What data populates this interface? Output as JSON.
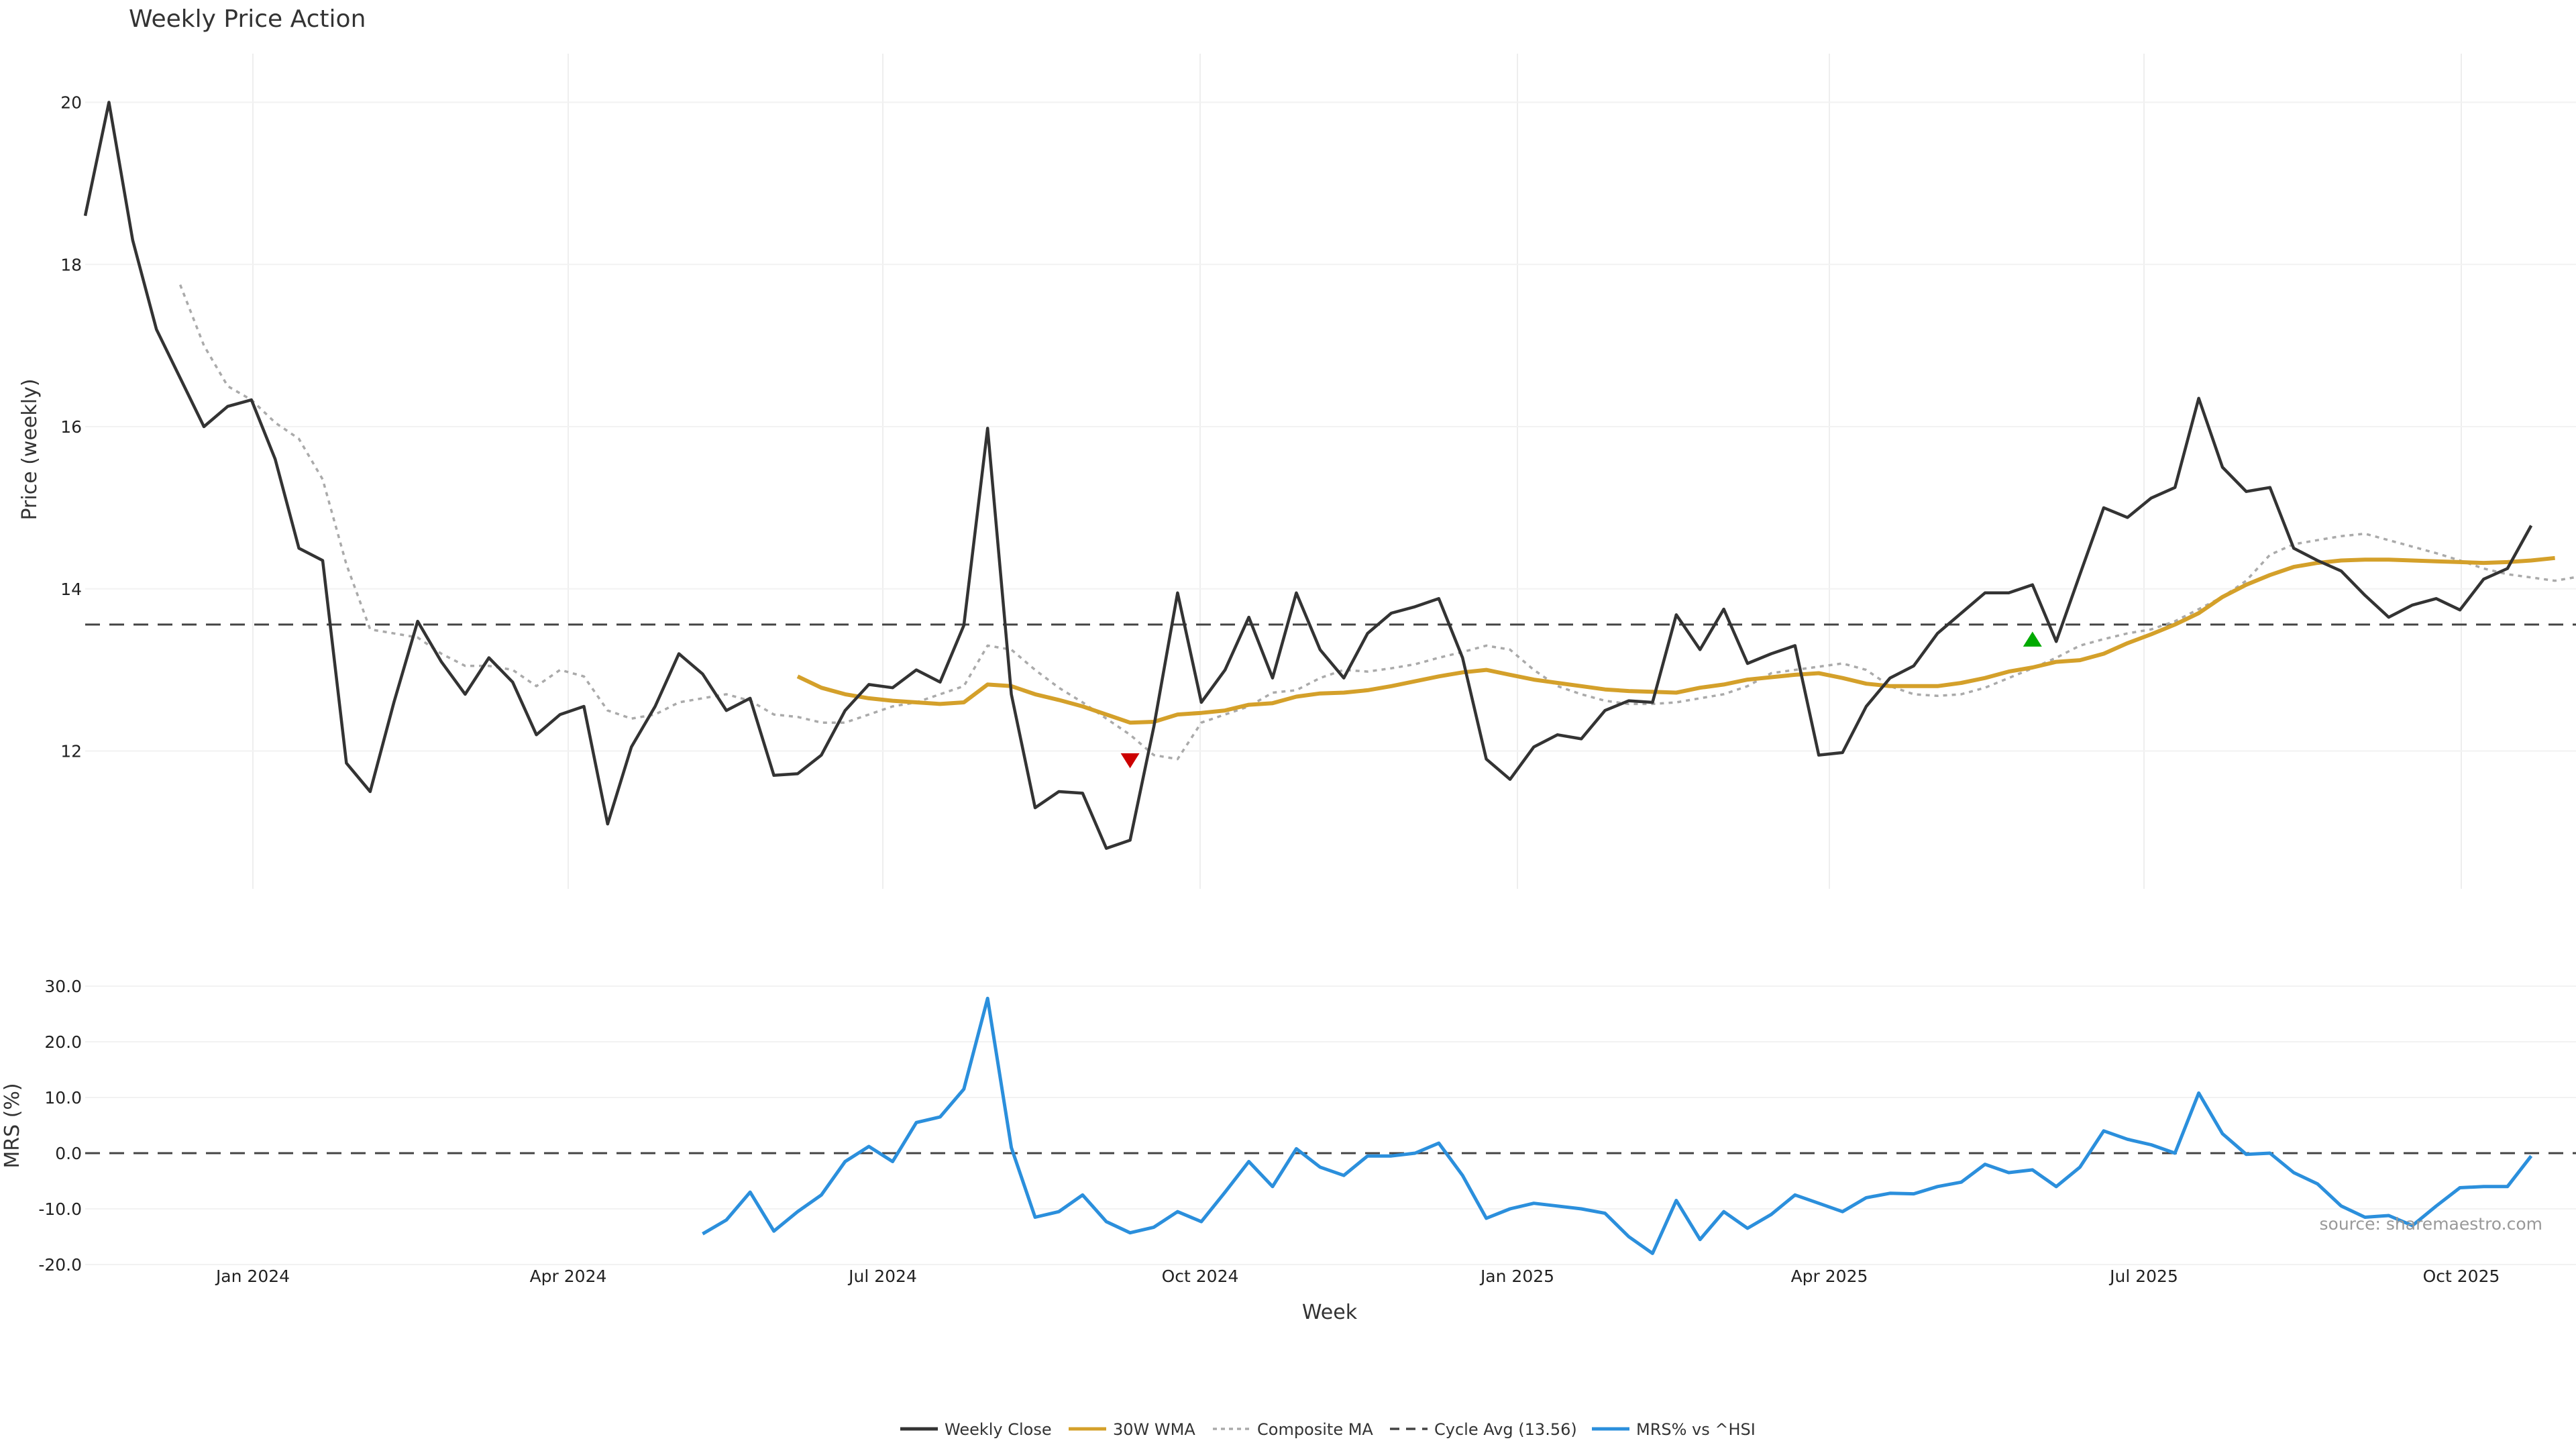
{
  "chart_data": {
    "type": "line",
    "title": "Weekly Price Action",
    "xlabel": "Week",
    "x_ticks": [
      "Jan 2024",
      "Apr 2024",
      "Jul 2024",
      "Oct 2024",
      "Jan 2025",
      "Apr 2025",
      "Jul 2025",
      "Oct 2025"
    ],
    "grid": true,
    "legend_position": "bottom-center",
    "source": "source: sharemaestro.com",
    "price_panel": {
      "ylabel": "Price (weekly)",
      "yticks": [
        12,
        14,
        16,
        18,
        20
      ],
      "ylim": [
        10.3,
        20.6
      ],
      "cycle_avg": 13.56,
      "series": [
        {
          "name": "Weekly Close",
          "color": "#333333",
          "start_index": 0,
          "values": [
            18.6,
            20.0,
            18.3,
            17.2,
            16.6,
            16.0,
            16.25,
            16.33,
            15.6,
            14.5,
            14.35,
            11.85,
            11.5,
            12.6,
            13.6,
            13.1,
            12.7,
            13.15,
            12.85,
            12.2,
            12.45,
            12.55,
            11.1,
            12.05,
            12.55,
            13.2,
            12.95,
            12.5,
            12.65,
            11.7,
            11.72,
            11.95,
            12.5,
            12.82,
            12.78,
            13.0,
            12.85,
            13.55,
            15.98,
            12.7,
            11.3,
            11.5,
            11.48,
            10.8,
            10.9,
            12.3,
            13.95,
            12.6,
            13.0,
            13.65,
            12.9,
            13.95,
            13.25,
            12.9,
            13.45,
            13.7,
            13.78,
            13.88,
            13.15,
            11.9,
            11.65,
            12.05,
            12.2,
            12.15,
            12.5,
            12.62,
            12.6,
            13.68,
            13.25,
            13.75,
            13.08,
            13.2,
            13.3,
            11.95,
            11.98,
            12.55,
            12.9,
            13.05,
            13.45,
            13.7,
            13.95,
            13.95,
            14.05,
            13.35,
            14.18,
            15.0,
            14.88,
            15.12,
            15.25,
            16.35,
            15.5,
            15.2,
            15.25,
            14.5,
            14.35,
            14.22,
            13.92,
            13.65,
            13.8,
            13.88,
            13.74,
            14.12,
            14.25,
            14.78
          ]
        },
        {
          "name": "30W WMA",
          "color": "#d4a02a",
          "start_index": 30,
          "values": [
            12.92,
            12.78,
            12.7,
            12.65,
            12.62,
            12.6,
            12.58,
            12.6,
            12.82,
            12.8,
            12.7,
            12.63,
            12.55,
            12.45,
            12.35,
            12.36,
            12.45,
            12.47,
            12.5,
            12.57,
            12.59,
            12.67,
            12.71,
            12.72,
            12.75,
            12.8,
            12.86,
            12.92,
            12.97,
            13.0,
            12.94,
            12.88,
            12.84,
            12.8,
            12.76,
            12.74,
            12.73,
            12.72,
            12.78,
            12.82,
            12.88,
            12.91,
            12.94,
            12.96,
            12.9,
            12.83,
            12.8,
            12.8,
            12.8,
            12.84,
            12.9,
            12.98,
            13.03,
            13.1,
            13.12,
            13.2,
            13.33,
            13.44,
            13.56,
            13.7,
            13.9,
            14.05,
            14.17,
            14.27,
            14.32,
            14.35,
            14.36,
            14.36,
            14.35,
            14.34,
            14.33,
            14.32,
            14.33,
            14.35,
            14.38
          ]
        },
        {
          "name": "Composite MA",
          "color": "#aaaaaa",
          "start_index": 4,
          "values": [
            17.75,
            17.0,
            16.5,
            16.33,
            16.05,
            15.85,
            15.35,
            14.3,
            13.5,
            13.45,
            13.4,
            13.2,
            13.05,
            13.05,
            13.0,
            12.8,
            13.0,
            12.92,
            12.5,
            12.4,
            12.45,
            12.6,
            12.65,
            12.7,
            12.62,
            12.45,
            12.42,
            12.35,
            12.35,
            12.45,
            12.55,
            12.6,
            12.7,
            12.8,
            13.3,
            13.25,
            13.0,
            12.78,
            12.6,
            12.4,
            12.2,
            11.95,
            11.9,
            12.35,
            12.45,
            12.55,
            12.72,
            12.75,
            12.9,
            13.0,
            12.98,
            13.02,
            13.07,
            13.15,
            13.22,
            13.3,
            13.25,
            13.0,
            12.8,
            12.7,
            12.62,
            12.58,
            12.58,
            12.6,
            12.65,
            12.7,
            12.8,
            12.96,
            13.0,
            13.04,
            13.08,
            13.0,
            12.8,
            12.7,
            12.68,
            12.7,
            12.78,
            12.9,
            13.02,
            13.15,
            13.3,
            13.38,
            13.45,
            13.5,
            13.6,
            13.75,
            13.9,
            14.1,
            14.42,
            14.55,
            14.6,
            14.65,
            14.68,
            14.6,
            14.52,
            14.44,
            14.35,
            14.25,
            14.18,
            14.14,
            14.1,
            14.15,
            14.22
          ]
        }
      ],
      "markers": [
        {
          "type": "sell",
          "shape": "triangle-down",
          "color": "#cc0000",
          "index": 44,
          "y": 11.88
        },
        {
          "type": "buy",
          "shape": "triangle-up",
          "color": "#00aa00",
          "index": 82,
          "y": 13.38
        }
      ]
    },
    "mrs_panel": {
      "ylabel": "MRS (%)",
      "yticks": [
        -20.0,
        -10.0,
        0.0,
        10.0,
        20.0,
        30.0
      ],
      "ylim": [
        -20,
        30
      ],
      "series": [
        {
          "name": "MRS% vs ^HSI",
          "color": "#2b8fdc",
          "start_index": 26,
          "values": [
            -14.5,
            -12,
            -7,
            -14,
            -10.5,
            -7.5,
            -1.5,
            1.2,
            -1.5,
            5.5,
            6.5,
            11.5,
            27.8,
            1.0,
            -11.5,
            -10.5,
            -7.5,
            -12.3,
            -14.3,
            -13.3,
            -10.5,
            -12.3,
            -7,
            -1.5,
            -6,
            0.8,
            -2.5,
            -4,
            -0.5,
            -0.5,
            0,
            1.8,
            -4,
            -11.7,
            -10,
            -9,
            -9.5,
            -10,
            -10.8,
            -15,
            -18,
            -8.5,
            -15.5,
            -10.5,
            -13.5,
            -11,
            -7.5,
            -9,
            -10.5,
            -8,
            -7.2,
            -7.3,
            -6,
            -5.2,
            -2,
            -3.5,
            -3,
            -6,
            -2.5,
            4,
            2.5,
            1.5,
            0,
            10.8,
            3.5,
            -0.2,
            0,
            -3.5,
            -5.5,
            -9.5,
            -11.5,
            -11.2,
            -13,
            -9.5,
            -6.2,
            -6,
            -6,
            -0.5
          ]
        }
      ]
    },
    "legend": [
      {
        "label": "Weekly Close",
        "color": "#333333",
        "style": "solid"
      },
      {
        "label": "30W WMA",
        "color": "#d4a02a",
        "style": "solid"
      },
      {
        "label": "Composite MA",
        "color": "#aaaaaa",
        "style": "dotted"
      },
      {
        "label": "Cycle Avg (13.56)",
        "color": "#444444",
        "style": "dashed"
      },
      {
        "label": "MRS% vs ^HSI",
        "color": "#2b8fdc",
        "style": "solid"
      }
    ]
  }
}
